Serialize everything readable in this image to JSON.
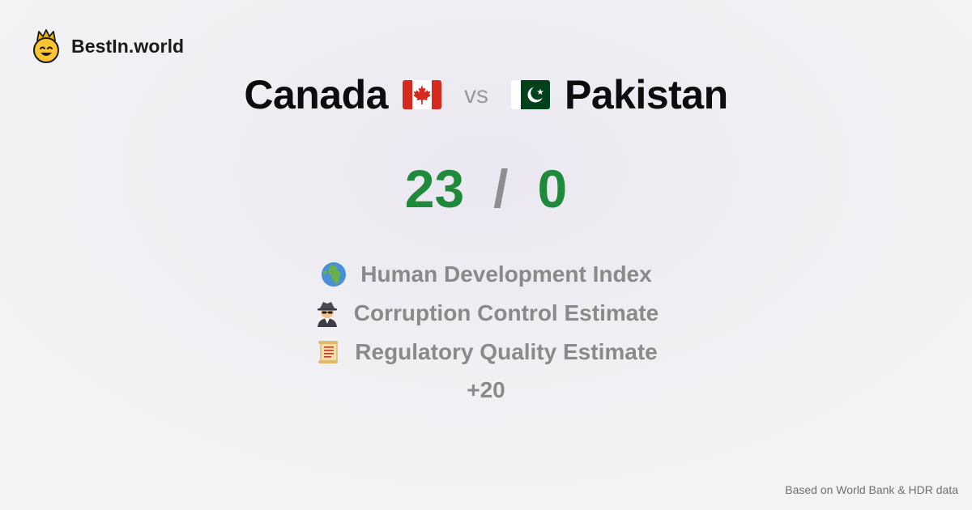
{
  "brand": {
    "name": "BestIn.world",
    "logo_icon": "crowned-smiley-icon"
  },
  "comparison": {
    "left": {
      "name": "Canada",
      "flag_icon": "canada-flag-icon",
      "score": "23"
    },
    "separator": "vs",
    "right": {
      "name": "Pakistan",
      "flag_icon": "pakistan-flag-icon",
      "score": "0"
    },
    "score_separator": "/"
  },
  "metrics": [
    {
      "icon": "globe-africa-icon",
      "label": "Human Development Index"
    },
    {
      "icon": "detective-icon",
      "label": "Corruption Control Estimate"
    },
    {
      "icon": "scroll-icon",
      "label": "Regulatory Quality Estimate"
    }
  ],
  "more_count": "+20",
  "footer": {
    "source": "Based on World Bank & HDR data"
  },
  "colors": {
    "score": "#1f8a3b",
    "muted": "#8a8a8a",
    "title": "#0d0d0d"
  }
}
